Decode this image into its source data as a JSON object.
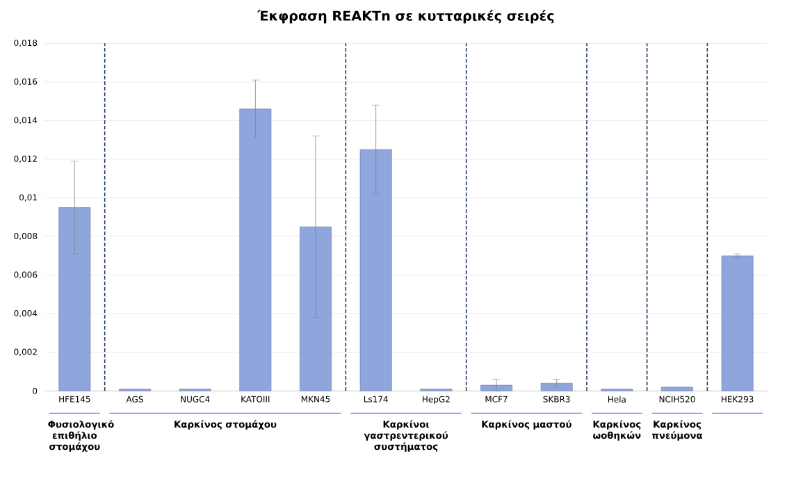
{
  "chart_data": {
    "type": "bar",
    "title": "Έκφραση REAKTn σε κυτταρικές σειρές",
    "categories": [
      "HFE145",
      "AGS",
      "NUGC4",
      "KATOIII",
      "MKN45",
      "Ls174",
      "HepG2",
      "MCF7",
      "SKBR3",
      "Hela",
      "NCIH520",
      "HEK293"
    ],
    "values": [
      0.0095,
      0.0001,
      0.0001,
      0.0146,
      0.0085,
      0.0125,
      0.0001,
      0.0003,
      0.0004,
      0.0001,
      0.0002,
      0.007
    ],
    "errors": [
      0.0024,
      null,
      null,
      0.0015,
      0.0047,
      0.0023,
      null,
      0.0003,
      0.0002,
      null,
      null,
      0.0001
    ],
    "color": "#8fa6dc",
    "ylim": [
      0,
      0.018
    ],
    "yticks": [
      0,
      {
        "value": 0.002,
        "label": "0,002"
      },
      {
        "value": 0.004,
        "label": "0,004"
      },
      {
        "value": 0.006,
        "label": "0,006"
      },
      {
        "value": 0.008,
        "label": "0,008"
      },
      {
        "value": 0.01,
        "label": "0,01"
      },
      {
        "value": 0.012,
        "label": "0,012"
      },
      {
        "value": 0.014,
        "label": "0,014"
      },
      {
        "value": 0.016,
        "label": "0,016"
      },
      {
        "value": 0.018,
        "label": "0,018"
      }
    ],
    "grid": "y",
    "annotations": [
      "Φυσιολογικό επιθήλιο στομάχου",
      "Καρκίνος στομάχου",
      "Καρκίνοι γαστρεντερικού συστήματος",
      "Καρκίνος μαστού",
      "Καρκίνος ωοθηκών",
      "Καρκίνος πνεύμονα"
    ]
  }
}
